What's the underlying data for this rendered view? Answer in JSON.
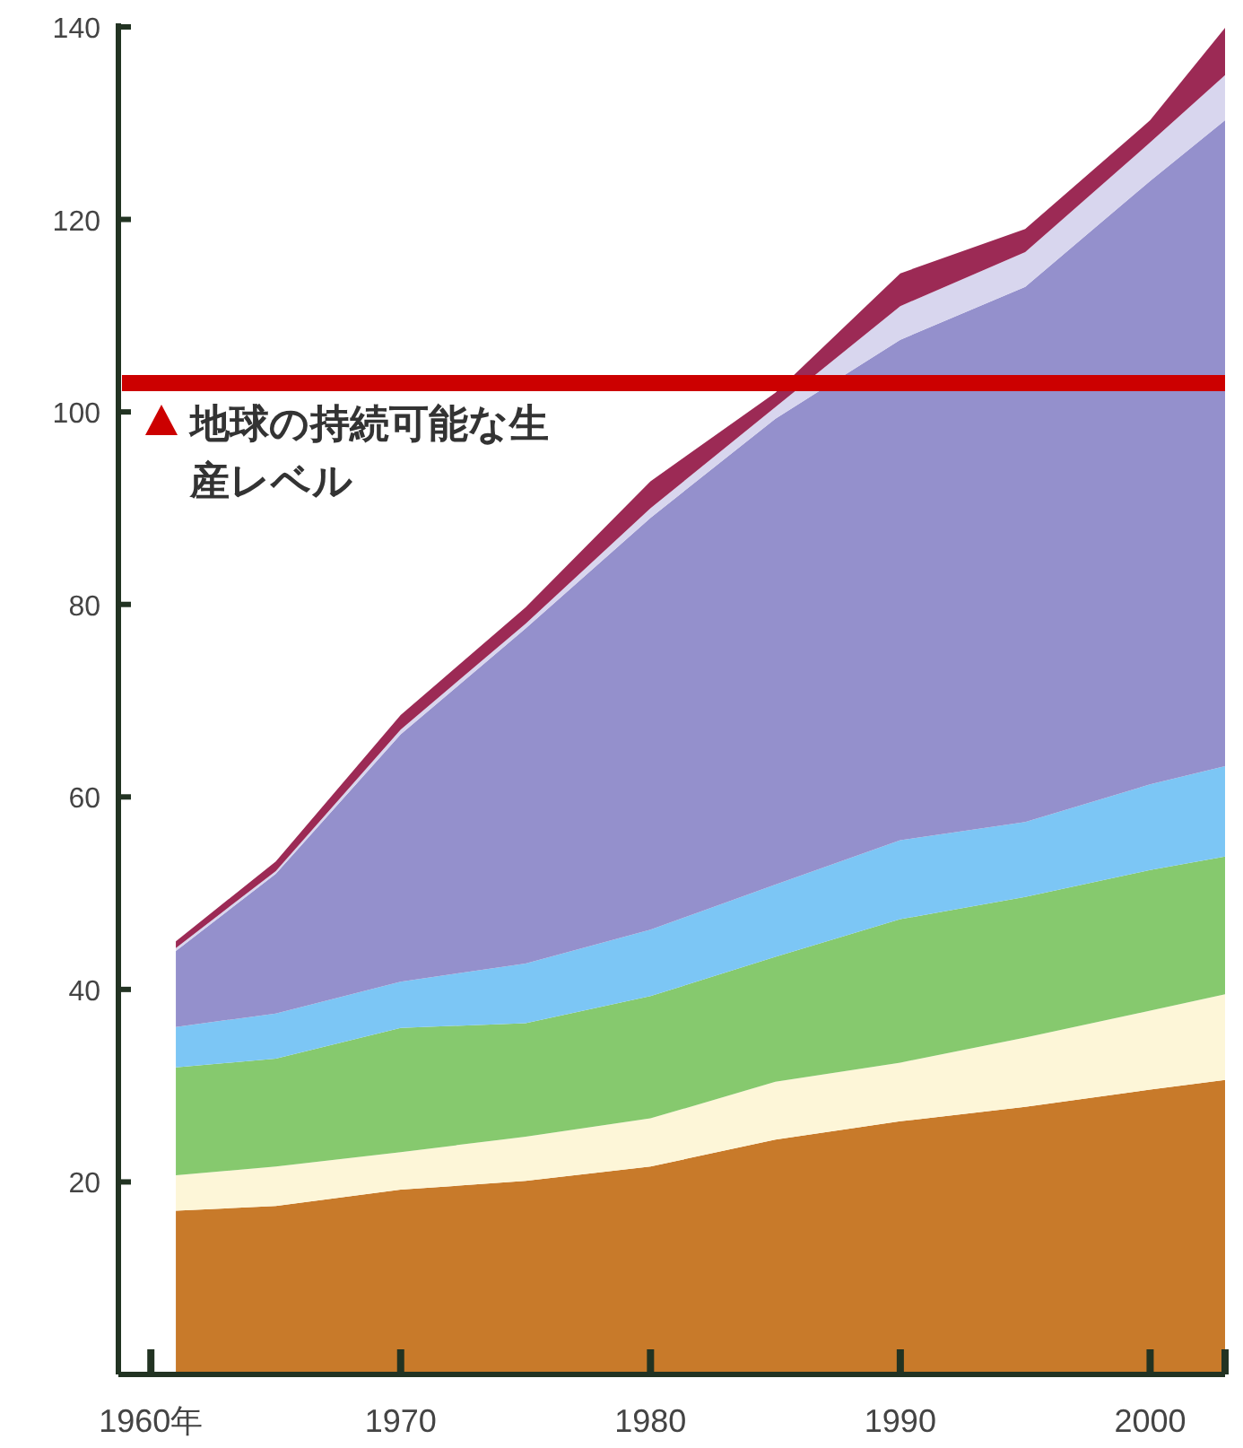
{
  "chart_data": {
    "type": "area",
    "stacked": true,
    "x": [
      1961,
      1965,
      1970,
      1975,
      1980,
      1985,
      1990,
      1995,
      2000,
      2003
    ],
    "series": [
      {
        "color": "#c87a2a",
        "values": [
          17.0,
          17.5,
          19.2,
          20.1,
          21.6,
          24.4,
          26.3,
          27.8,
          29.6,
          30.6
        ]
      },
      {
        "color": "#fdf6d8",
        "values": [
          3.7,
          4.1,
          3.9,
          4.6,
          5.0,
          6.0,
          6.1,
          7.2,
          8.2,
          8.9
        ]
      },
      {
        "color": "#86c96e",
        "values": [
          11.2,
          11.2,
          12.9,
          11.8,
          12.7,
          13.0,
          14.9,
          14.6,
          14.6,
          14.3
        ]
      },
      {
        "color": "#7cc6f5",
        "values": [
          4.2,
          4.7,
          4.8,
          6.2,
          6.9,
          7.5,
          8.2,
          7.8,
          8.9,
          9.4
        ]
      },
      {
        "color": "#9490cc",
        "values": [
          7.9,
          14.5,
          25.7,
          34.8,
          42.8,
          48.4,
          52.0,
          55.6,
          62.7,
          67.1
        ]
      },
      {
        "color": "#d8d6ee",
        "values": [
          0.3,
          0.3,
          0.5,
          0.5,
          1.0,
          1.2,
          3.5,
          3.6,
          4.0,
          4.7
        ]
      },
      {
        "color": "#9c2a55",
        "values": [
          0.7,
          1.0,
          1.5,
          1.7,
          2.8,
          1.5,
          3.4,
          2.4,
          2.3,
          4.9
        ]
      }
    ],
    "xlim": [
      1958.7,
      2003
    ],
    "ylim": [
      0,
      140
    ],
    "xticks": [
      {
        "value": 1960,
        "label": "1960年"
      },
      1970,
      1980,
      1990,
      2000,
      {
        "value": 2003,
        "label": null
      }
    ],
    "yticks": [
      20,
      40,
      60,
      80,
      100,
      120,
      140
    ],
    "ref_lines": [
      {
        "axis": "y",
        "value": 103,
        "label": "地球の持続可能な生産レベル",
        "color": "#cc0000"
      }
    ]
  }
}
